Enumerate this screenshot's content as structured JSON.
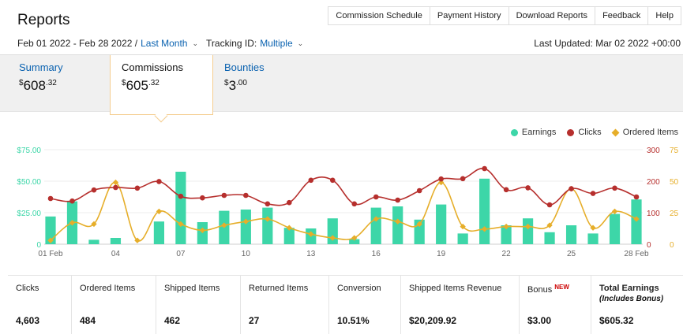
{
  "header": {
    "title": "Reports",
    "nav": [
      "Commission Schedule",
      "Payment History",
      "Download Reports",
      "Feedback",
      "Help"
    ],
    "date_range": "Feb 01 2022 - Feb 28 2022 /",
    "range_preset": "Last Month",
    "tracking_label": "Tracking ID:",
    "tracking_value": "Multiple",
    "last_updated": "Last Updated: Mar 02 2022 +00:00"
  },
  "tabs": {
    "summary": {
      "label": "Summary",
      "currency": "$",
      "whole": "608",
      "cents": ".32"
    },
    "commissions": {
      "label": "Commissions",
      "currency": "$",
      "whole": "605",
      "cents": ".32"
    },
    "bounties": {
      "label": "Bounties",
      "currency": "$",
      "whole": "3",
      "cents": ".00"
    }
  },
  "chart_data": {
    "type": "bar",
    "x_tick_labels": [
      "01 Feb",
      "04",
      "07",
      "10",
      "13",
      "16",
      "19",
      "22",
      "25",
      "28 Feb"
    ],
    "x_tick_days": [
      1,
      4,
      7,
      10,
      13,
      16,
      19,
      22,
      25,
      28
    ],
    "days": [
      1,
      2,
      3,
      4,
      5,
      6,
      7,
      8,
      9,
      10,
      11,
      12,
      13,
      14,
      15,
      16,
      17,
      18,
      19,
      20,
      21,
      22,
      23,
      24,
      25,
      26,
      27,
      28
    ],
    "left_ticks": [
      "0",
      "$25.00",
      "$50.00",
      "$75.00"
    ],
    "left_ylim": [
      0,
      75
    ],
    "right_ticks_outer": [
      "0",
      "25",
      "50",
      "75"
    ],
    "right_ticks_inner": [
      "0",
      "100",
      "200",
      "300"
    ],
    "clicks_ylim": [
      0,
      300
    ],
    "items_ylim": [
      0,
      75
    ],
    "legend_position": "top-right",
    "grid": true,
    "series": [
      {
        "name": "Earnings",
        "color": "#3dd6a8",
        "axis": "left",
        "mark": "bar",
        "values": [
          22,
          34,
          3.5,
          5,
          0,
          18,
          57.5,
          17.5,
          26.5,
          27.5,
          29,
          13,
          12.5,
          20.5,
          4,
          29,
          30,
          19.5,
          31.5,
          8.5,
          52,
          15,
          20.5,
          9.5,
          15,
          8.5,
          24,
          35.5
        ]
      },
      {
        "name": "Clicks",
        "color": "#b62f2d",
        "axis": "right_inner",
        "mark": "line",
        "values": [
          145,
          137,
          172,
          180,
          178,
          199,
          152,
          147,
          155,
          155,
          128,
          132,
          203,
          203,
          128,
          150,
          140,
          170,
          207,
          208,
          240,
          173,
          179,
          125,
          176,
          161,
          178,
          150
        ]
      },
      {
        "name": "Ordered Items",
        "color": "#e6ae2a",
        "axis": "right_outer",
        "mark": "line",
        "values": [
          3,
          17,
          16,
          49,
          3,
          26,
          16,
          11,
          15,
          18,
          20,
          13,
          8,
          5,
          5,
          20,
          18,
          16,
          49,
          14,
          12,
          14,
          14,
          15,
          44,
          13,
          26,
          20
        ]
      }
    ]
  },
  "stats": [
    {
      "label": "Clicks",
      "value": "4,603"
    },
    {
      "label": "Ordered Items",
      "value": "484"
    },
    {
      "label": "Shipped Items",
      "value": "462"
    },
    {
      "label": "Returned Items",
      "value": "27"
    },
    {
      "label": "Conversion",
      "value": "10.51%"
    },
    {
      "label": "Shipped Items Revenue",
      "value": "$20,209.92"
    },
    {
      "label": "Bonus",
      "badge": "NEW",
      "value": "$3.00"
    },
    {
      "label": "Total Earnings",
      "sub": "(Includes Bonus)",
      "value": "$605.32"
    }
  ]
}
